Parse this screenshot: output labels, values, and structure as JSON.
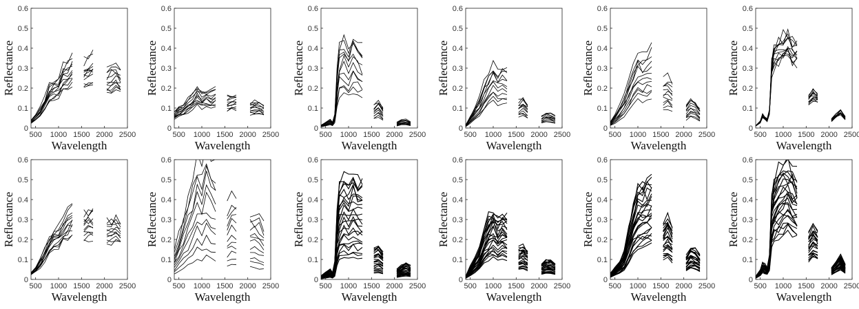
{
  "chart_data": [
    {
      "type": "line",
      "title": "",
      "xlabel": "Wavelength",
      "ylabel": "Reflectance",
      "xlim": [
        400,
        2500
      ],
      "ylim": [
        0,
        0.6
      ],
      "xticks": [
        500,
        1000,
        1500,
        2000,
        2500
      ],
      "yticks": [
        0,
        0.1,
        0.2,
        0.3,
        0.4,
        0.5,
        0.6
      ],
      "grid": false,
      "legend": "none",
      "x": [
        400,
        500,
        600,
        700,
        800,
        900,
        1000,
        1100,
        1200,
        1300,
        1350,
        1450,
        1550,
        1650,
        1750,
        1800,
        1950,
        2050,
        2150,
        2250,
        2350,
        2400
      ],
      "profile": [
        0.03,
        0.05,
        0.08,
        0.12,
        0.17,
        0.19,
        0.2,
        0.25,
        0.27,
        0.3,
        null,
        null,
        0.27,
        0.28,
        0.29,
        null,
        null,
        0.23,
        0.24,
        0.25,
        0.23,
        null
      ],
      "n_spectra": 12,
      "spread": [
        0.75,
        1.25
      ],
      "series": []
    },
    {
      "type": "line",
      "title": "",
      "xlabel": "Wavelength",
      "ylabel": "Reflectance",
      "xlim": [
        400,
        2500
      ],
      "ylim": [
        0,
        0.6
      ],
      "xticks": [
        500,
        1000,
        1500,
        2000,
        2500
      ],
      "yticks": [
        0,
        0.1,
        0.2,
        0.3,
        0.4,
        0.5,
        0.6
      ],
      "grid": false,
      "legend": "none",
      "x": [
        400,
        500,
        600,
        700,
        800,
        900,
        1000,
        1100,
        1200,
        1300,
        1350,
        1450,
        1550,
        1650,
        1750,
        1800,
        1950,
        2050,
        2150,
        2250,
        2350,
        2400
      ],
      "profile": [
        0.06,
        0.08,
        0.09,
        0.11,
        0.13,
        0.16,
        0.14,
        0.15,
        0.14,
        0.15,
        null,
        null,
        0.12,
        0.13,
        0.13,
        null,
        null,
        0.1,
        0.1,
        0.1,
        0.09,
        null
      ],
      "n_spectra": 12,
      "spread": [
        0.7,
        1.3
      ],
      "series": []
    },
    {
      "type": "line",
      "title": "",
      "xlabel": "Wavelength",
      "ylabel": "Reflectance",
      "xlim": [
        400,
        2500
      ],
      "ylim": [
        0,
        0.6
      ],
      "xticks": [
        500,
        1000,
        1500,
        2000,
        2500
      ],
      "yticks": [
        0,
        0.1,
        0.2,
        0.3,
        0.4,
        0.5,
        0.6
      ],
      "grid": false,
      "legend": "none",
      "x": [
        400,
        500,
        600,
        650,
        700,
        750,
        800,
        900,
        1000,
        1100,
        1200,
        1300,
        1350,
        1450,
        1550,
        1650,
        1750,
        1800,
        1950,
        2050,
        2150,
        2250,
        2350,
        2400
      ],
      "profile": [
        0.01,
        0.02,
        0.03,
        0.02,
        0.05,
        0.2,
        0.3,
        0.32,
        0.28,
        0.33,
        0.3,
        0.28,
        null,
        null,
        0.08,
        0.1,
        0.07,
        null,
        null,
        0.02,
        0.03,
        0.03,
        0.02,
        null
      ],
      "n_spectra": 12,
      "spread": [
        0.55,
        1.45
      ],
      "series": []
    },
    {
      "type": "line",
      "title": "",
      "xlabel": "Wavelength",
      "ylabel": "Reflectance",
      "xlim": [
        400,
        2500
      ],
      "ylim": [
        0,
        0.6
      ],
      "xticks": [
        500,
        1000,
        1500,
        2000,
        2500
      ],
      "yticks": [
        0,
        0.1,
        0.2,
        0.3,
        0.4,
        0.5,
        0.6
      ],
      "grid": false,
      "legend": "none",
      "x": [
        400,
        500,
        600,
        700,
        800,
        900,
        1000,
        1100,
        1200,
        1300,
        1350,
        1450,
        1550,
        1650,
        1750,
        1800,
        1950,
        2050,
        2150,
        2250,
        2350,
        2400
      ],
      "profile": [
        0.01,
        0.04,
        0.07,
        0.1,
        0.15,
        0.19,
        0.22,
        0.19,
        0.21,
        0.2,
        null,
        null,
        0.09,
        0.1,
        0.08,
        null,
        null,
        0.04,
        0.05,
        0.05,
        0.04,
        null
      ],
      "n_spectra": 12,
      "spread": [
        0.6,
        1.5
      ],
      "series": []
    },
    {
      "type": "line",
      "title": "",
      "xlabel": "Wavelength",
      "ylabel": "Reflectance",
      "xlim": [
        400,
        2500
      ],
      "ylim": [
        0,
        0.6
      ],
      "xticks": [
        500,
        1000,
        1500,
        2000,
        2500
      ],
      "yticks": [
        0,
        0.1,
        0.2,
        0.3,
        0.4,
        0.5,
        0.6
      ],
      "grid": false,
      "legend": "none",
      "x": [
        400,
        500,
        600,
        700,
        800,
        900,
        1000,
        1100,
        1200,
        1300,
        1350,
        1450,
        1550,
        1650,
        1750,
        1800,
        1950,
        2050,
        2150,
        2250,
        2350,
        2400
      ],
      "profile": [
        0.02,
        0.04,
        0.07,
        0.1,
        0.15,
        0.2,
        0.24,
        0.22,
        0.23,
        0.25,
        null,
        null,
        0.15,
        0.16,
        0.14,
        null,
        null,
        0.07,
        0.09,
        0.08,
        0.06,
        null
      ],
      "n_spectra": 12,
      "spread": [
        0.6,
        1.6
      ],
      "series": []
    },
    {
      "type": "line",
      "title": "",
      "xlabel": "Wavelength",
      "ylabel": "Reflectance",
      "xlim": [
        400,
        2500
      ],
      "ylim": [
        0,
        0.6
      ],
      "xticks": [
        500,
        1000,
        1500,
        2000,
        2500
      ],
      "yticks": [
        0,
        0.1,
        0.2,
        0.3,
        0.4,
        0.5,
        0.6
      ],
      "grid": false,
      "legend": "none",
      "x": [
        400,
        500,
        550,
        600,
        650,
        700,
        750,
        800,
        900,
        1000,
        1100,
        1200,
        1300,
        1350,
        1450,
        1550,
        1650,
        1750,
        1800,
        1950,
        2050,
        2150,
        2250,
        2350,
        2400
      ],
      "profile": [
        0.01,
        0.03,
        0.06,
        0.05,
        0.04,
        0.08,
        0.3,
        0.36,
        0.38,
        0.4,
        0.42,
        0.38,
        0.37,
        null,
        null,
        0.14,
        0.17,
        0.15,
        null,
        null,
        0.04,
        0.06,
        0.08,
        0.05,
        null
      ],
      "n_spectra": 12,
      "spread": [
        0.85,
        1.15
      ],
      "series": []
    },
    {
      "type": "line",
      "title": "",
      "xlabel": "Wavelength",
      "ylabel": "Reflectance",
      "xlim": [
        400,
        2500
      ],
      "ylim": [
        0,
        0.6
      ],
      "xticks": [
        500,
        1000,
        1500,
        2000,
        2500
      ],
      "yticks": [
        0,
        0.1,
        0.2,
        0.3,
        0.4,
        0.5,
        0.6
      ],
      "grid": false,
      "legend": "none",
      "x": [
        400,
        500,
        600,
        700,
        800,
        900,
        1000,
        1100,
        1200,
        1300,
        1350,
        1450,
        1550,
        1650,
        1750,
        1800,
        1950,
        2050,
        2150,
        2250,
        2350,
        2400
      ],
      "profile": [
        0.03,
        0.05,
        0.08,
        0.12,
        0.17,
        0.2,
        0.21,
        0.25,
        0.27,
        0.3,
        null,
        null,
        0.26,
        0.27,
        0.28,
        null,
        null,
        0.23,
        0.24,
        0.25,
        0.23,
        null
      ],
      "n_spectra": 12,
      "spread": [
        0.75,
        1.25
      ],
      "series": []
    },
    {
      "type": "line",
      "title": "",
      "xlabel": "Wavelength",
      "ylabel": "Reflectance",
      "xlim": [
        400,
        2500
      ],
      "ylim": [
        0,
        0.6
      ],
      "xticks": [
        500,
        1000,
        1500,
        2000,
        2500
      ],
      "yticks": [
        0,
        0.1,
        0.2,
        0.3,
        0.4,
        0.5,
        0.6
      ],
      "grid": false,
      "legend": "none",
      "x": [
        400,
        500,
        600,
        700,
        800,
        900,
        1000,
        1100,
        1200,
        1300,
        1350,
        1450,
        1550,
        1650,
        1750,
        1800,
        1950,
        2050,
        2150,
        2250,
        2350,
        2400
      ],
      "profile": [
        0.05,
        0.08,
        0.11,
        0.14,
        0.17,
        0.22,
        0.2,
        0.23,
        0.21,
        0.2,
        null,
        null,
        0.13,
        0.15,
        0.14,
        null,
        null,
        0.12,
        0.12,
        0.11,
        0.1,
        null
      ],
      "n_spectra": 12,
      "spread": [
        0.5,
        2.8
      ],
      "series": []
    },
    {
      "type": "line",
      "title": "",
      "xlabel": "Wavelength",
      "ylabel": "Reflectance",
      "xlim": [
        400,
        2500
      ],
      "ylim": [
        0,
        0.6
      ],
      "xticks": [
        500,
        1000,
        1500,
        2000,
        2500
      ],
      "yticks": [
        0,
        0.1,
        0.2,
        0.3,
        0.4,
        0.5,
        0.6
      ],
      "grid": false,
      "legend": "none",
      "x": [
        400,
        500,
        600,
        650,
        700,
        750,
        800,
        900,
        1000,
        1100,
        1200,
        1300,
        1350,
        1450,
        1550,
        1650,
        1750,
        1800,
        1950,
        2050,
        2150,
        2250,
        2350,
        2400
      ],
      "profile": [
        0.01,
        0.02,
        0.03,
        0.02,
        0.05,
        0.2,
        0.27,
        0.3,
        0.28,
        0.31,
        0.29,
        0.28,
        null,
        null,
        0.09,
        0.1,
        0.08,
        null,
        null,
        0.03,
        0.04,
        0.05,
        0.04,
        null
      ],
      "n_spectra": 24,
      "spread": [
        0.35,
        1.75
      ],
      "series": []
    },
    {
      "type": "line",
      "title": "",
      "xlabel": "Wavelength",
      "ylabel": "Reflectance",
      "xlim": [
        400,
        2500
      ],
      "ylim": [
        0,
        0.6
      ],
      "xticks": [
        500,
        1000,
        1500,
        2000,
        2500
      ],
      "yticks": [
        0,
        0.1,
        0.2,
        0.3,
        0.4,
        0.5,
        0.6
      ],
      "grid": false,
      "legend": "none",
      "x": [
        400,
        500,
        600,
        700,
        800,
        900,
        1000,
        1100,
        1200,
        1300,
        1350,
        1450,
        1550,
        1650,
        1750,
        1800,
        1950,
        2050,
        2150,
        2250,
        2350,
        2400
      ],
      "profile": [
        0.01,
        0.04,
        0.07,
        0.1,
        0.16,
        0.2,
        0.22,
        0.19,
        0.21,
        0.2,
        null,
        null,
        0.1,
        0.11,
        0.09,
        null,
        null,
        0.05,
        0.06,
        0.06,
        0.05,
        null
      ],
      "n_spectra": 24,
      "spread": [
        0.5,
        1.6
      ],
      "series": []
    },
    {
      "type": "line",
      "title": "",
      "xlabel": "Wavelength",
      "ylabel": "Reflectance",
      "xlim": [
        400,
        2500
      ],
      "ylim": [
        0,
        0.6
      ],
      "xticks": [
        500,
        1000,
        1500,
        2000,
        2500
      ],
      "yticks": [
        0,
        0.1,
        0.2,
        0.3,
        0.4,
        0.5,
        0.6
      ],
      "grid": false,
      "legend": "none",
      "x": [
        400,
        500,
        600,
        700,
        800,
        900,
        1000,
        1100,
        1200,
        1300,
        1350,
        1450,
        1550,
        1650,
        1750,
        1800,
        1950,
        2050,
        2150,
        2250,
        2350,
        2400
      ],
      "profile": [
        0.02,
        0.04,
        0.06,
        0.09,
        0.17,
        0.25,
        0.3,
        0.32,
        0.33,
        0.35,
        null,
        null,
        0.19,
        0.21,
        0.18,
        null,
        null,
        0.08,
        0.11,
        0.1,
        0.08,
        null
      ],
      "n_spectra": 24,
      "spread": [
        0.5,
        1.5
      ],
      "series": []
    },
    {
      "type": "line",
      "title": "",
      "xlabel": "Wavelength",
      "ylabel": "Reflectance",
      "xlim": [
        400,
        2500
      ],
      "ylim": [
        0,
        0.6
      ],
      "xticks": [
        500,
        1000,
        1500,
        2000,
        2500
      ],
      "yticks": [
        0,
        0.1,
        0.2,
        0.3,
        0.4,
        0.5,
        0.6
      ],
      "grid": false,
      "legend": "none",
      "x": [
        400,
        500,
        550,
        600,
        650,
        700,
        750,
        800,
        900,
        1000,
        1100,
        1200,
        1300,
        1350,
        1450,
        1550,
        1650,
        1750,
        1800,
        1950,
        2050,
        2150,
        2250,
        2350,
        2400
      ],
      "profile": [
        0.01,
        0.03,
        0.06,
        0.05,
        0.04,
        0.08,
        0.28,
        0.33,
        0.36,
        0.38,
        0.4,
        0.37,
        0.35,
        null,
        null,
        0.15,
        0.18,
        0.16,
        null,
        null,
        0.04,
        0.06,
        0.08,
        0.05,
        null
      ],
      "n_spectra": 24,
      "spread": [
        0.6,
        1.5
      ],
      "series": []
    }
  ]
}
